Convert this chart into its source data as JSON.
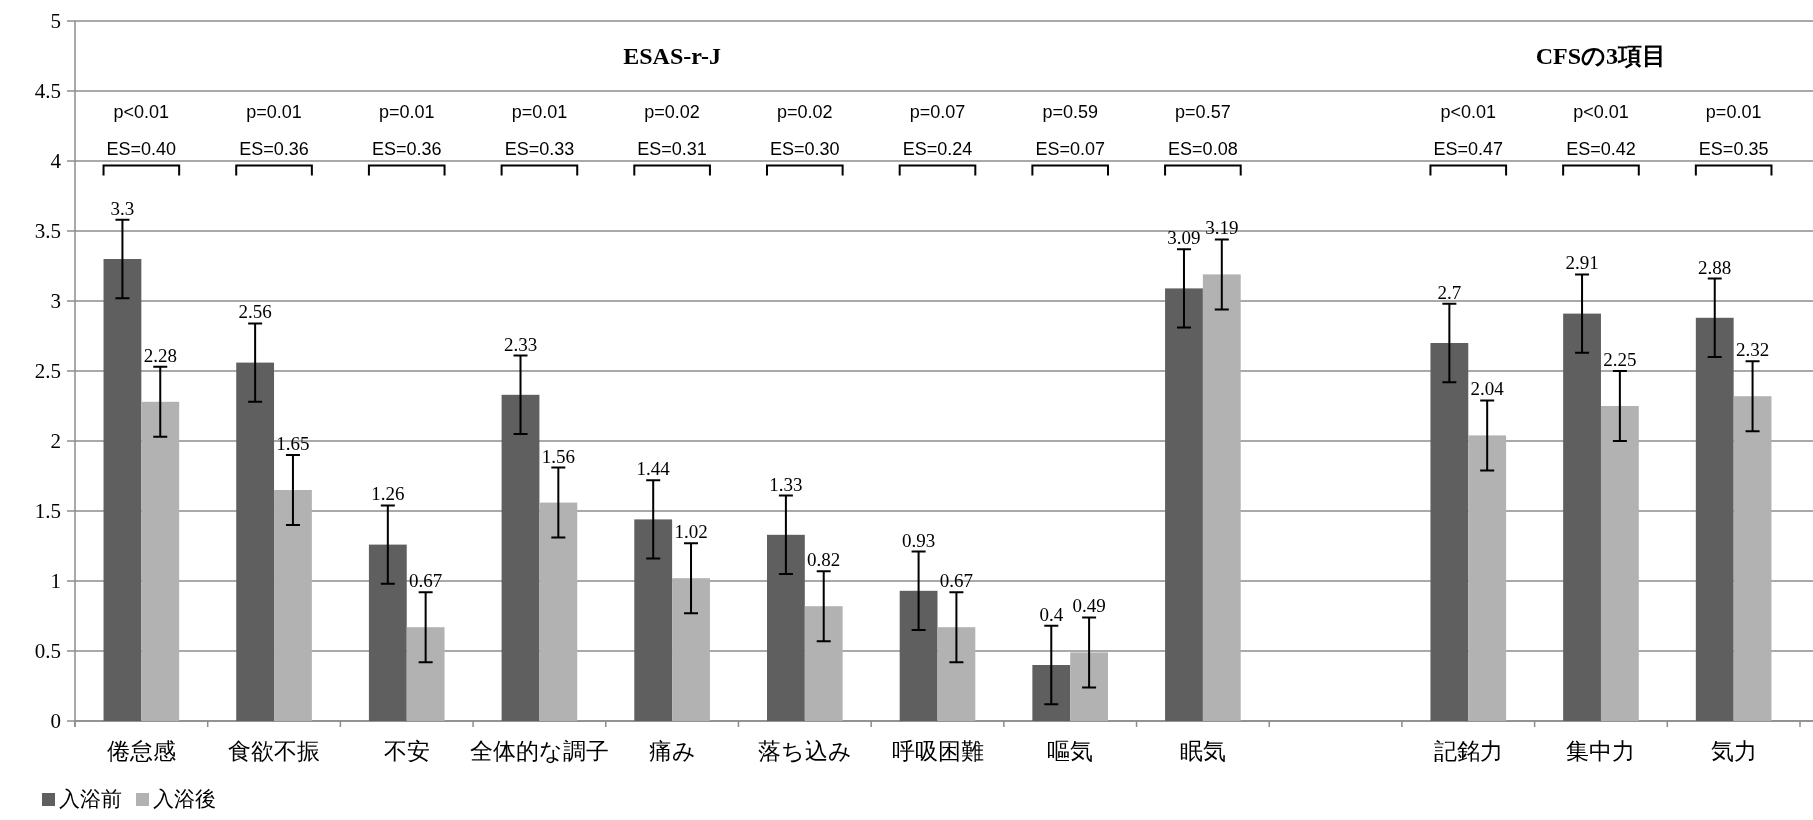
{
  "chart_data": {
    "type": "bar",
    "categories": [
      "倦怠感",
      "食欲不振",
      "不安",
      "全体的な調子",
      "痛み",
      "落ち込み",
      "呼吸困難",
      "嘔気",
      "眠気",
      null,
      "記銘力",
      "集中力",
      "気力"
    ],
    "series": [
      {
        "name": "入浴前",
        "color": "#5f5f5f",
        "values": [
          3.3,
          2.56,
          1.26,
          2.33,
          1.44,
          1.33,
          0.93,
          0.4,
          3.09,
          null,
          2.7,
          2.91,
          2.88
        ],
        "errors": [
          0.28,
          0.28,
          0.28,
          0.28,
          0.28,
          0.28,
          0.28,
          0.28,
          0.28,
          null,
          0.28,
          0.28,
          0.28
        ]
      },
      {
        "name": "入浴後",
        "color": "#b2b2b2",
        "values": [
          2.28,
          1.65,
          0.67,
          1.56,
          1.02,
          0.82,
          0.67,
          0.49,
          3.19,
          null,
          2.04,
          2.25,
          2.32
        ],
        "errors": [
          0.25,
          0.25,
          0.25,
          0.25,
          0.25,
          0.25,
          0.25,
          0.25,
          0.25,
          null,
          0.25,
          0.25,
          0.25
        ]
      }
    ],
    "ylim": [
      0,
      5
    ],
    "yticks": [
      0,
      0.5,
      1,
      1.5,
      2,
      2.5,
      3,
      3.5,
      4,
      4.5,
      5
    ],
    "grid": "y",
    "legend": "bottom left",
    "data_labels": true,
    "annotations": [
      "ESAS-r-J",
      "CFSの3項目",
      "p<0.01",
      "ES=0.40",
      "p=0.01",
      "ES=0.36",
      "p=0.01",
      "ES=0.36",
      "p=0.01",
      "ES=0.33",
      "p=0.02",
      "ES=0.31",
      "p=0.02",
      "ES=0.30",
      "p=0.07",
      "ES=0.24",
      "p=0.59",
      "ES=0.07",
      "p=0.57",
      "ES=0.08",
      "p<0.01",
      "ES=0.47",
      "p<0.01",
      "ES=0.42",
      "p=0.01",
      "ES=0.35"
    ]
  }
}
